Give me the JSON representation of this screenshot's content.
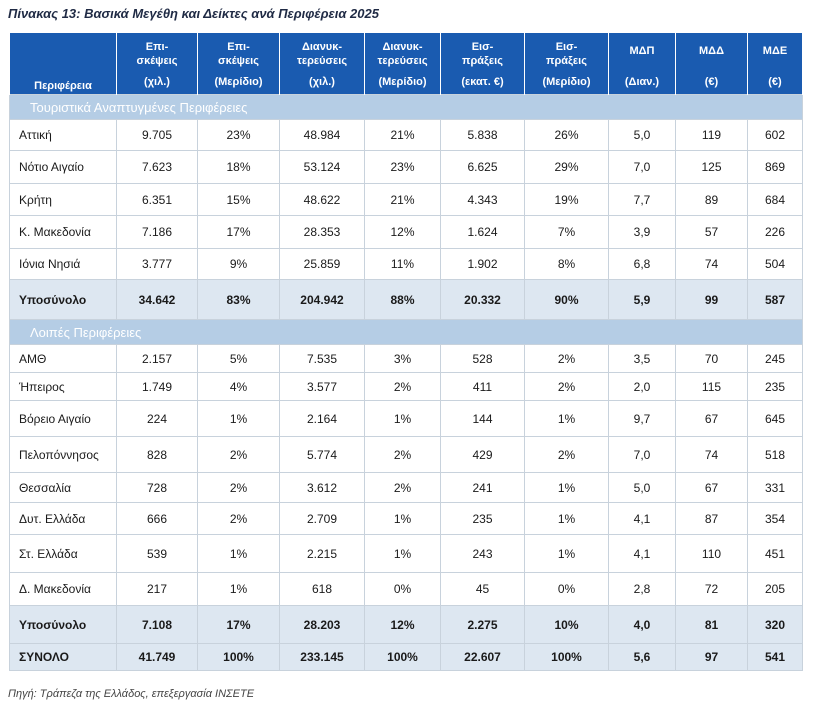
{
  "title": "Πίνακας 13: Βασικά Μεγέθη και Δείκτες ανά Περιφέρεια 2025",
  "headers": [
    {
      "line1": "Περιφέρεια",
      "line2": ""
    },
    {
      "line1": "Επι-σκέψεις",
      "line2": "(χιλ.)"
    },
    {
      "line1": "Επι-σκέψεις",
      "line2": "(Μερίδιο)"
    },
    {
      "line1": "Διανυκ-τερεύσεις",
      "line2": "(χιλ.)"
    },
    {
      "line1": "Διανυκ-τερεύσεις",
      "line2": "(Μερίδιο)"
    },
    {
      "line1": "Εισ-πράξεις",
      "line2": "(εκατ. €)"
    },
    {
      "line1": "Εισ-πράξεις",
      "line2": "(Μερίδιο)"
    },
    {
      "line1": "ΜΔΠ",
      "line2": "(Διαν.)"
    },
    {
      "line1": "ΜΔΔ",
      "line2": "(€)"
    },
    {
      "line1": "ΜΔΕ",
      "line2": "(€)"
    }
  ],
  "header_lines": {
    "c1a": "Επι-",
    "c1b": "σκέψεις",
    "c3a": "Διανυκ-",
    "c3b": "τερεύσεις",
    "c5a": "Εισ-",
    "c5b": "πράξεις"
  },
  "sections": [
    {
      "label": "Τουριστικά Αναπτυγμένες Περιφέρειες",
      "rows": [
        [
          "Αττική",
          "9.705",
          "23%",
          "48.984",
          "21%",
          "5.838",
          "26%",
          "5,0",
          "119",
          "602"
        ],
        [
          "Νότιο Αιγαίο",
          "7.623",
          "18%",
          "53.124",
          "23%",
          "6.625",
          "29%",
          "7,0",
          "125",
          "869"
        ],
        [
          "Κρήτη",
          "6.351",
          "15%",
          "48.622",
          "21%",
          "4.343",
          "19%",
          "7,7",
          "89",
          "684"
        ],
        [
          "Κ. Μακεδονία",
          "7.186",
          "17%",
          "28.353",
          "12%",
          "1.624",
          "7%",
          "3,9",
          "57",
          "226"
        ],
        [
          "Ιόνια Νησιά",
          "3.777",
          "9%",
          "25.859",
          "11%",
          "1.902",
          "8%",
          "6,8",
          "74",
          "504"
        ]
      ],
      "subtotal": [
        "Υποσύνολο",
        "34.642",
        "83%",
        "204.942",
        "88%",
        "20.332",
        "90%",
        "5,9",
        "99",
        "587"
      ]
    },
    {
      "label": "Λοιπές Περιφέρειες",
      "rows": [
        [
          "ΑΜΘ",
          "2.157",
          "5%",
          "7.535",
          "3%",
          "528",
          "2%",
          "3,5",
          "70",
          "245"
        ],
        [
          "Ήπειρος",
          "1.749",
          "4%",
          "3.577",
          "2%",
          "411",
          "2%",
          "2,0",
          "115",
          "235"
        ],
        [
          "Βόρειο Αιγαίο",
          "224",
          "1%",
          "2.164",
          "1%",
          "144",
          "1%",
          "9,7",
          "67",
          "645"
        ],
        [
          "Πελοπόννησος",
          "828",
          "2%",
          "5.774",
          "2%",
          "429",
          "2%",
          "7,0",
          "74",
          "518"
        ],
        [
          "Θεσσαλία",
          "728",
          "2%",
          "3.612",
          "2%",
          "241",
          "1%",
          "5,0",
          "67",
          "331"
        ],
        [
          "Δυτ. Ελλάδα",
          "666",
          "2%",
          "2.709",
          "1%",
          "235",
          "1%",
          "4,1",
          "87",
          "354"
        ],
        [
          "Στ. Ελλάδα",
          "539",
          "1%",
          "2.215",
          "1%",
          "243",
          "1%",
          "4,1",
          "110",
          "451"
        ],
        [
          "Δ. Μακεδονία",
          "217",
          "1%",
          "618",
          "0%",
          "45",
          "0%",
          "2,8",
          "72",
          "205"
        ]
      ],
      "subtotal": [
        "Υποσύνολο",
        "7.108",
        "17%",
        "28.203",
        "12%",
        "2.275",
        "10%",
        "4,0",
        "81",
        "320"
      ]
    }
  ],
  "total": [
    "ΣΥΝΟΛΟ",
    "41.749",
    "100%",
    "233.145",
    "100%",
    "22.607",
    "100%",
    "5,6",
    "97",
    "541"
  ],
  "source": "Πηγή: Τράπεζα της Ελλάδος, επεξεργασία ΙΝΣΕΤΕ"
}
